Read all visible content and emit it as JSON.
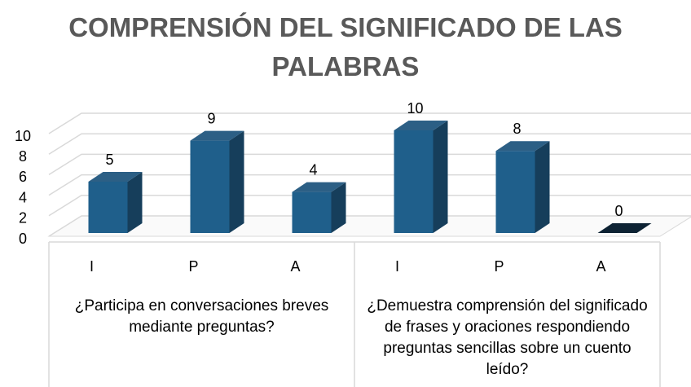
{
  "chart_data": {
    "type": "bar3d",
    "title": "COMPRENSIÓN DEL SIGNIFICADO DE LAS PALABRAS",
    "categories": [
      "I",
      "P",
      "A",
      "I",
      "P",
      "A"
    ],
    "groups": [
      "¿Participa en conversaciones breves mediante preguntas?",
      "¿Demuestra comprensión del significado de frases y oraciones respondiendo preguntas sencillas sobre un cuento leído?"
    ],
    "values": [
      5,
      9,
      4,
      10,
      8,
      0
    ],
    "color": "#1f5f8b",
    "ylim": [
      0,
      10
    ],
    "yticks": [
      0,
      2,
      4,
      6,
      8,
      10
    ],
    "grid": true
  }
}
